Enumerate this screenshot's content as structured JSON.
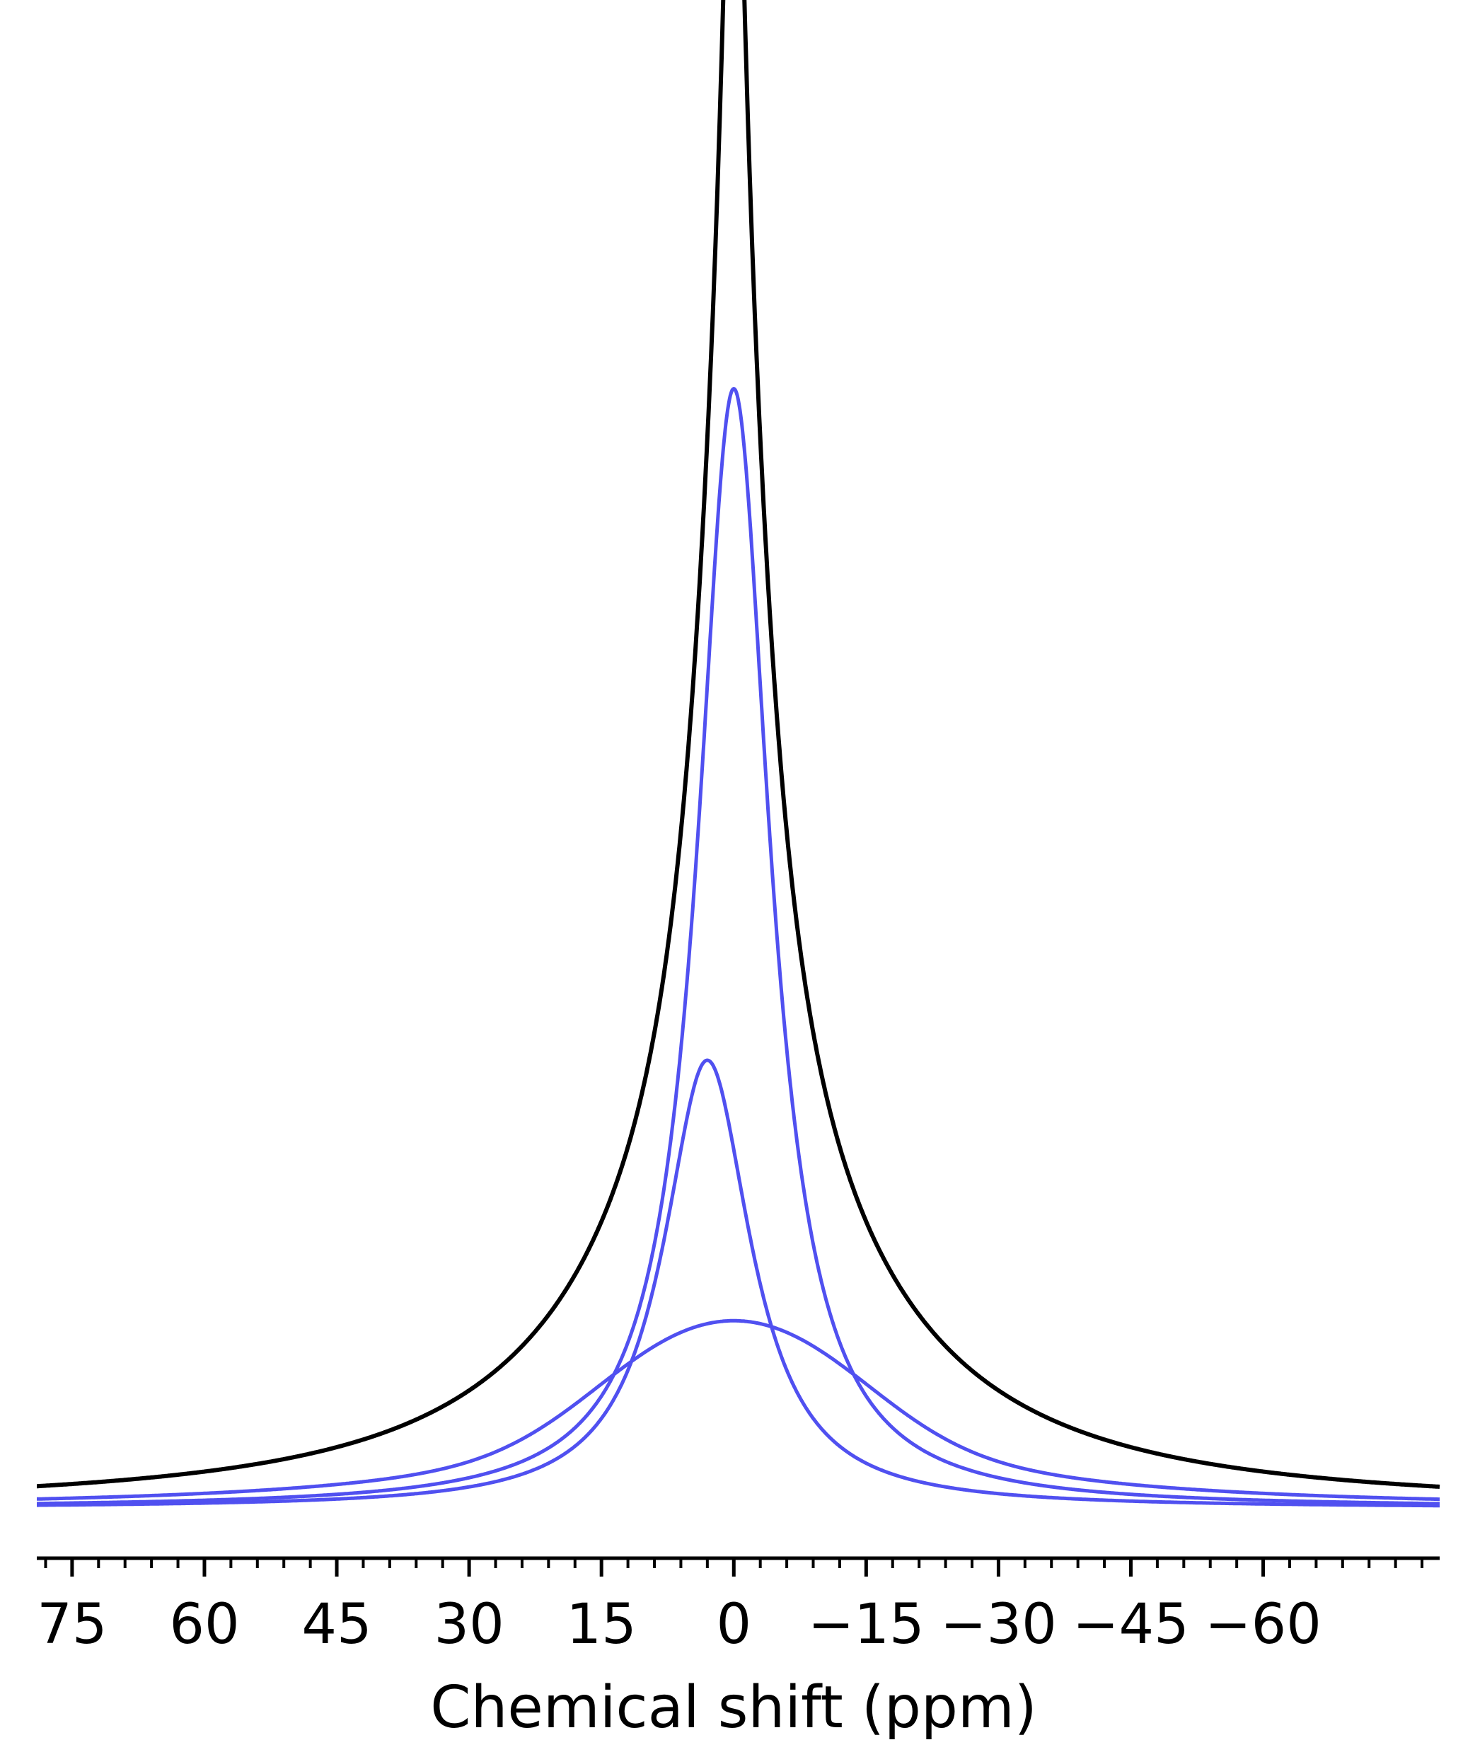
{
  "chart_data": {
    "type": "line",
    "xlabel": "Chemical shift (ppm)",
    "ylabel": "",
    "x_reversed": true,
    "xlim": [
      79,
      -80
    ],
    "ylim": [
      0,
      1.0
    ],
    "grid": false,
    "y_axis_visible": false,
    "major_ticks": [
      75,
      60,
      45,
      30,
      15,
      0,
      -15,
      -30,
      -45,
      -60
    ],
    "tick_labels": [
      "75",
      "60",
      "45",
      "30",
      "15",
      "0",
      "−15",
      "−30",
      "−45",
      "−60"
    ],
    "minor_tick_step": 3,
    "series": [
      {
        "color": "#000000",
        "role": "experimental",
        "components": [
          {
            "center": 0.0,
            "height": 0.4,
            "gamma": 1.5,
            "shape": "lorentzian"
          },
          {
            "center": 0.0,
            "height": 0.6,
            "gamma": 5.0,
            "shape": "lorentzian"
          },
          {
            "center": 0.0,
            "height": 0.2,
            "gamma": 20.0,
            "shape": "lorentzian"
          }
        ]
      },
      {
        "color": "#5050f0",
        "role": "fit-component",
        "components": [
          {
            "center": 0.0,
            "height": 0.75,
            "gamma": 5.0,
            "shape": "lorentzian"
          }
        ]
      },
      {
        "color": "#5050f0",
        "role": "fit-component",
        "components": [
          {
            "center": 3.0,
            "height": 0.3,
            "gamma": 6.0,
            "shape": "lorentzian"
          }
        ]
      },
      {
        "color": "#5050f0",
        "role": "fit-component",
        "components": [
          {
            "center": 8.0,
            "height": 0.0375,
            "sigma": 10.0,
            "shape": "gaussian"
          },
          {
            "center": -8.0,
            "height": 0.0375,
            "sigma": 10.0,
            "shape": "gaussian"
          },
          {
            "center": 0.0,
            "height": 0.071,
            "gamma": 24.0,
            "shape": "lorentzian"
          }
        ]
      }
    ]
  }
}
